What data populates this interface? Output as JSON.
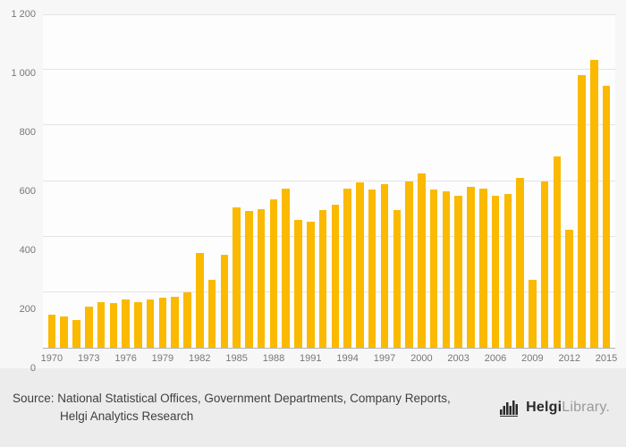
{
  "chart_data": {
    "type": "bar",
    "title": "",
    "xlabel": "",
    "ylabel": "",
    "x": [
      1970,
      1971,
      1972,
      1973,
      1974,
      1975,
      1976,
      1977,
      1978,
      1979,
      1980,
      1981,
      1982,
      1983,
      1984,
      1985,
      1986,
      1987,
      1988,
      1989,
      1990,
      1991,
      1992,
      1993,
      1994,
      1995,
      1996,
      1997,
      1998,
      1999,
      2000,
      2001,
      2002,
      2003,
      2004,
      2005,
      2006,
      2007,
      2008,
      2009,
      2010,
      2011,
      2012,
      2013,
      2014,
      2015
    ],
    "values": [
      120,
      113,
      100,
      148,
      165,
      160,
      175,
      163,
      175,
      180,
      185,
      200,
      340,
      243,
      335,
      505,
      492,
      500,
      535,
      573,
      460,
      453,
      497,
      515,
      573,
      595,
      570,
      588,
      497,
      600,
      628,
      570,
      563,
      548,
      578,
      572,
      548,
      553,
      612,
      245,
      597,
      690,
      425,
      980,
      1035,
      943
    ],
    "ylim": [
      0,
      1200
    ],
    "yticks": [
      0,
      200,
      400,
      600,
      800,
      1000,
      1200
    ],
    "ytick_labels": [
      "0",
      "200",
      "400",
      "600",
      "800",
      "1 000",
      "1 200"
    ],
    "xtick_labels": [
      "1970",
      "1973",
      "1976",
      "1979",
      "1982",
      "1985",
      "1988",
      "1991",
      "1994",
      "1997",
      "2000",
      "2003",
      "2006",
      "2009",
      "2012",
      "2015"
    ],
    "bar_color": "#FBB900",
    "grid": true,
    "legend": "none"
  },
  "footer": {
    "source_line1": "Source: National Statistical Offices, Government Departments, Company Reports,",
    "source_line2": "Helgi Analytics Research",
    "logo": {
      "helgi": "Helgi",
      "library": "Library."
    }
  }
}
